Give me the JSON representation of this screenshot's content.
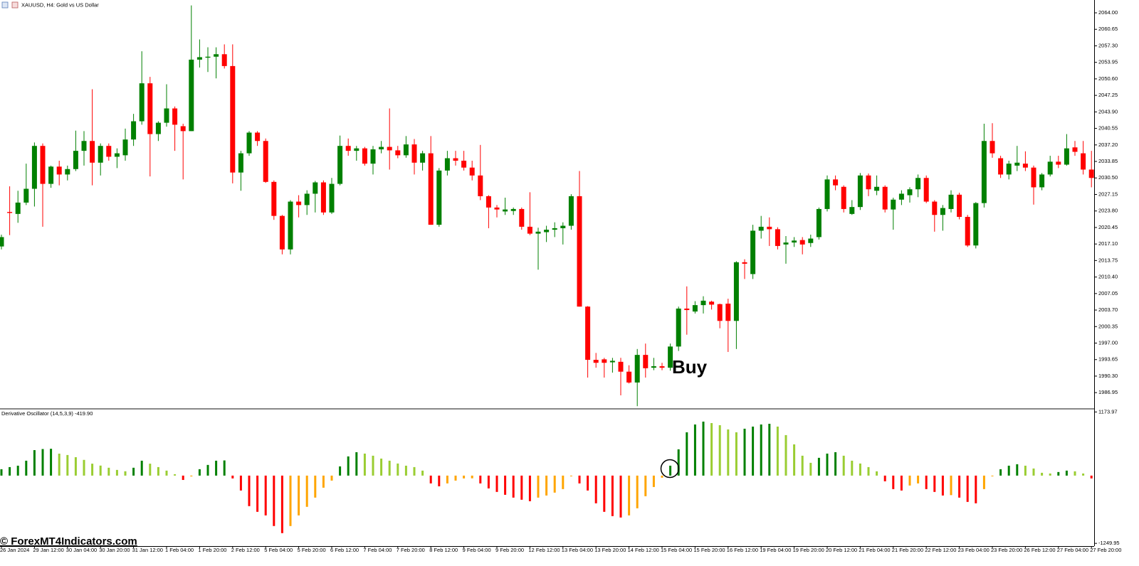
{
  "chart_data": [
    {
      "type": "candlestick",
      "title": "XAUUSD, H4: Gold vs US Dollar",
      "annotation": "Buy",
      "up_color": "#008000",
      "down_color": "#ff0000",
      "categories": [
        "26 Jan 2024",
        null,
        null,
        null,
        "29 Jan 12:00",
        null,
        null,
        null,
        "30 Jan 04:00",
        null,
        null,
        null,
        "30 Jan 20:00",
        null,
        null,
        null,
        "31 Jan 12:00",
        null,
        null,
        null,
        "1 Feb 04:00",
        null,
        null,
        null,
        "1 Feb 20:00",
        null,
        null,
        null,
        "2 Feb 12:00",
        null,
        null,
        null,
        "5 Feb 04:00",
        null,
        null,
        null,
        "5 Feb 20:00",
        null,
        null,
        null,
        "6 Feb 12:00",
        null,
        null,
        null,
        "7 Feb 04:00",
        null,
        null,
        null,
        "7 Feb 20:00",
        null,
        null,
        null,
        "8 Feb 12:00",
        null,
        null,
        null,
        "9 Feb 04:00",
        null,
        null,
        null,
        "9 Feb 20:00",
        null,
        null,
        null,
        "12 Feb 12:00",
        null,
        null,
        null,
        "13 Feb 04:00",
        null,
        null,
        null,
        "13 Feb 20:00",
        null,
        null,
        null,
        "14 Feb 12:00",
        null,
        null,
        null,
        "15 Feb 04:00",
        null,
        null,
        null,
        "15 Feb 20:00",
        null,
        null,
        null,
        "16 Feb 12:00",
        null,
        null,
        null,
        "19 Feb 04:00",
        null,
        null,
        null,
        "19 Feb 20:00",
        null,
        null,
        null,
        "20 Feb 12:00",
        null,
        null,
        null,
        "21 Feb 04:00",
        null,
        null,
        null,
        "21 Feb 20:00",
        null,
        null,
        null,
        "22 Feb 12:00",
        null,
        null,
        null,
        "23 Feb 04:00",
        null,
        null,
        null,
        "23 Feb 20:00",
        null,
        null,
        null,
        "26 Feb 12:00",
        null,
        null,
        null,
        "27 Feb 04:00",
        null,
        null,
        null,
        "27 Feb 20:00"
      ],
      "open": [
        2016.6,
        2023.6,
        2023.2,
        2025.5,
        2028.3,
        2037,
        2029.3,
        2032.8,
        2031.2,
        2032.3,
        2036,
        2038,
        2033.6,
        2037,
        2034.8,
        2035.1,
        2038.3,
        2042,
        2049.7,
        2039.4,
        2041.7,
        2044.6,
        2041,
        2040,
        2054.5,
        2054.9,
        2055.1,
        2055.6,
        2053.2,
        2031.6,
        2035.5,
        2039.7,
        2038,
        2029.7,
        2022.8,
        2016,
        2025.7,
        2025,
        2027.3,
        2029.6,
        2023.5,
        2029.3,
        2037,
        2036,
        2036.5,
        2033.4,
        2036.3,
        2036.8,
        2036.1,
        2035.1,
        2037.3,
        2033.6,
        2035.5,
        2021,
        2032,
        2034.5,
        2034,
        2032.6,
        2031,
        2026.8,
        2024.5,
        2023.7,
        2023.8,
        2024.2,
        2020.6,
        2019.2,
        2019.5,
        2020,
        2020.3,
        2020.8,
        2026.8,
        2004.4,
        1993.6,
        1993.7,
        1993.1,
        1993.2,
        1991.2,
        1989,
        1994.6,
        1992,
        1992.3,
        1992,
        1996.3,
        2004,
        2003.4,
        2004.7,
        2005.4,
        2004.9,
        2005,
        2001.5,
        2013.4,
        2011,
        2019.8,
        2020.6,
        2020.1,
        2017,
        2017.4,
        2017.9,
        2017.3,
        2018.5,
        2024.2,
        2030.2,
        2028.7,
        2023.2,
        2024.6,
        2031,
        2027.9,
        2028.7,
        2024.1,
        2026.1,
        2027,
        2028.2,
        2030.5,
        2025.7,
        2023,
        2024.2,
        2027.1,
        2022.6,
        2016.8,
        2025.4,
        2038,
        2034.5,
        2031.2,
        2033,
        2033.4,
        2032.6,
        2028.6,
        2031.2,
        2033.8,
        2033.2,
        2036.7,
        2035.5,
        2032.2
      ],
      "high": [
        2019,
        2028.8,
        2027.9,
        2033.4,
        2037.7,
        2037.5,
        2033,
        2034,
        2033,
        2040.1,
        2040,
        2048.5,
        2037.5,
        2037.5,
        2036.5,
        2040.5,
        2043.5,
        2056.2,
        2051,
        2042,
        2049.5,
        2045,
        2041.5,
        2065.5,
        2058.6,
        2057,
        2057,
        2057.6,
        2057.6,
        2036,
        2040,
        2040,
        2038.5,
        2030,
        2023,
        2026,
        2027,
        2028,
        2029.9,
        2030,
        2030.5,
        2039.1,
        2038.5,
        2037,
        2036.8,
        2037,
        2038,
        2044.6,
        2037,
        2039,
        2038.4,
        2036,
        2039,
        2032.5,
        2036,
        2036,
        2036,
        2034,
        2037.2,
        2027,
        2025,
        2026.5,
        2024.5,
        2024.5,
        2027.6,
        2020.4,
        2020.8,
        2021.5,
        2021.5,
        2027.2,
        2031.9,
        2004.5,
        1995,
        1994,
        1994,
        1994,
        1992.5,
        1995.8,
        1996.9,
        1994,
        1993,
        1996.9,
        2004.4,
        2008.5,
        2005.5,
        2006.5,
        2005.6,
        2005,
        2006,
        2013.6,
        2014,
        2021,
        2022.8,
        2022.5,
        2020.5,
        2018.7,
        2018.5,
        2018.5,
        2019,
        2024.5,
        2031,
        2031,
        2029,
        2026,
        2031.5,
        2031.4,
        2031,
        2029,
        2026.5,
        2028,
        2028.6,
        2031.2,
        2031,
        2026,
        2025,
        2028,
        2027.5,
        2023,
        2025.6,
        2041.5,
        2041.6,
        2035,
        2034,
        2037,
        2035.9,
        2033,
        2031.5,
        2035,
        2035,
        2039.4,
        2038,
        2038,
        2036
      ],
      "low": [
        2016,
        2018.9,
        2021.4,
        2025,
        2024.7,
        2020.6,
        2028.5,
        2029,
        2030,
        2031.9,
        2033,
        2029,
        2031,
        2034,
        2032.5,
        2034,
        2037,
        2041.3,
        2030.8,
        2038,
        2040.9,
        2036,
        2030.2,
        2040,
        2052.9,
        2052,
        2050.7,
        2052.7,
        2029.4,
        2027.9,
        2035,
        2037,
        2029.5,
        2022,
        2015,
        2015,
        2022.5,
        2023,
        2023.5,
        2023,
        2023.2,
        2029,
        2035,
        2034,
        2033,
        2031.2,
        2035.5,
        2032.2,
        2034.5,
        2034.6,
        2031.2,
        2032,
        2021,
        2020.6,
        2031,
        2033,
        2032,
        2030,
        2026,
        2020.3,
        2022.5,
        2023,
        2023,
        2020,
        2018.9,
        2011.9,
        2017.5,
        2018.5,
        2017,
        2020,
        2004.4,
        1990,
        1992,
        1990,
        1991,
        1986.4,
        1988.8,
        1984.2,
        1990,
        1991.5,
        1991.5,
        1991.4,
        1995.4,
        1998.7,
        2003,
        2003,
        2003.8,
        2000,
        1995.2,
        1995.8,
        2010,
        2010,
        2018.2,
        2016.7,
        2016,
        2013.1,
        2016.5,
        2015,
        2016.5,
        2018,
        2023.7,
        2028,
        2023.5,
        2023,
        2024,
        2026.8,
        2027,
        2023.5,
        2020,
        2025,
        2025.5,
        2026.6,
        2025.4,
        2019.6,
        2019.8,
        2023.5,
        2022.1,
        2016.5,
        2016.2,
        2024.5,
        2034.6,
        2030.5,
        2030.2,
        2031.9,
        2031.9,
        2025.1,
        2028,
        2030.8,
        2032.5,
        2033,
        2035,
        2031.2,
        2028.6
      ],
      "close": [
        2018.5,
        2023.4,
        2025.5,
        2028.3,
        2037,
        2029.3,
        2032.8,
        2031.2,
        2032.3,
        2036,
        2038,
        2033.6,
        2037,
        2034.8,
        2035.5,
        2038.3,
        2042,
        2049.7,
        2039.4,
        2041.7,
        2044.6,
        2041.3,
        2040,
        2054.5,
        2055,
        2055.1,
        2055.6,
        2053.2,
        2031.6,
        2035.5,
        2039.7,
        2038,
        2029.7,
        2022.8,
        2016,
        2025.7,
        2025,
        2027.3,
        2029.6,
        2023.5,
        2029.3,
        2037,
        2036,
        2036.5,
        2033.4,
        2036.3,
        2036.8,
        2036.1,
        2035.1,
        2037.3,
        2033.6,
        2035.5,
        2021,
        2032,
        2034.5,
        2034,
        2032.6,
        2031,
        2026.8,
        2024.5,
        2024.1,
        2024.1,
        2024.2,
        2020.6,
        2019.2,
        2019.6,
        2020,
        2020.3,
        2020.8,
        2026.8,
        2004.4,
        1993.6,
        1993,
        1993,
        1993.4,
        1991.2,
        1989,
        1994.6,
        1991.9,
        1992.3,
        1992,
        1996.3,
        2004,
        2003.7,
        2004.7,
        2005.6,
        2004.8,
        2001.5,
        2001.5,
        2013.4,
        2013.1,
        2019.8,
        2020.6,
        2020.1,
        2016.7,
        2017.4,
        2017.8,
        2017,
        2018.2,
        2024.2,
        2030.2,
        2029,
        2024.2,
        2024.6,
        2031,
        2028.2,
        2028.7,
        2024.1,
        2026.1,
        2027.3,
        2028.2,
        2030.5,
        2025.7,
        2023,
        2024.4,
        2027.1,
        2022.6,
        2016.8,
        2025.4,
        2038,
        2035.5,
        2031.2,
        2033.4,
        2033.6,
        2032.6,
        2028.6,
        2031.2,
        2033.8,
        2033.2,
        2036.5,
        2035.8,
        2032.2,
        2030.5
      ],
      "ylim": [
        1983.8,
        2066.6
      ],
      "yticks": [
        {
          "value": 2064,
          "label": "2064.00"
        },
        2060.65,
        {
          "value": 2057.3,
          "label": "2057.30"
        },
        2053.95,
        {
          "value": 2050.6,
          "label": "2050.60"
        },
        2047.25,
        {
          "value": 2043.9,
          "label": "2043.90"
        },
        2040.55,
        {
          "value": 2037.2,
          "label": "2037.20"
        },
        2033.85,
        {
          "value": 2030.5,
          "label": "2030.50"
        },
        2027.15,
        {
          "value": 2023.8,
          "label": "2023.80"
        },
        2020.45,
        {
          "value": 2017.1,
          "label": "2017.10"
        },
        2013.75,
        {
          "value": 2010.4,
          "label": "2010.40"
        },
        2007.05,
        {
          "value": 2003.7,
          "label": "2003.70"
        },
        2000.35,
        {
          "value": 1997,
          "label": "1997.00"
        },
        1993.65,
        {
          "value": 1990.3,
          "label": "1990.30"
        },
        1986.95
      ]
    },
    {
      "type": "bar",
      "title": "Derivative Oscillator (14,5,3,9) -419.90",
      "colors": [
        "#008000",
        "#9acd32",
        "#ff0000",
        "#ffa500"
      ],
      "values": [
        118,
        157,
        183,
        275,
        470,
        490,
        495,
        405,
        380,
        340,
        290,
        220,
        185,
        145,
        105,
        80,
        145,
        275,
        220,
        157,
        92,
        26,
        -80,
        -15,
        118,
        197,
        275,
        280,
        -52,
        -275,
        -563,
        -668,
        -734,
        -930,
        -1061,
        -930,
        -734,
        -576,
        -406,
        -223,
        -92,
        170,
        354,
        432,
        406,
        367,
        314,
        275,
        223,
        183,
        157,
        92,
        -144,
        -197,
        -144,
        -92,
        -52,
        -50,
        -144,
        -236,
        -301,
        -354,
        -406,
        -445,
        -472,
        -406,
        -367,
        -314,
        -249,
        -13,
        -144,
        -275,
        -511,
        -668,
        -747,
        -773,
        -734,
        -603,
        -380,
        -210,
        -39,
        183,
        485,
        799,
        943,
        996,
        969,
        930,
        852,
        799,
        865,
        904,
        943,
        956,
        904,
        747,
        576,
        367,
        236,
        328,
        406,
        432,
        367,
        275,
        223,
        157,
        79,
        -105,
        -249,
        -275,
        -183,
        -144,
        -249,
        -301,
        -367,
        -360,
        -406,
        -485,
        -511,
        -249,
        -13,
        118,
        183,
        210,
        183,
        131,
        52,
        39,
        66,
        92,
        79,
        39,
        -52
      ],
      "ylim": [
        -1300,
        1205
      ],
      "yticks": [
        1173.97,
        -1249.95
      ]
    }
  ],
  "watermark": "© ForexMT4Indicators.com"
}
